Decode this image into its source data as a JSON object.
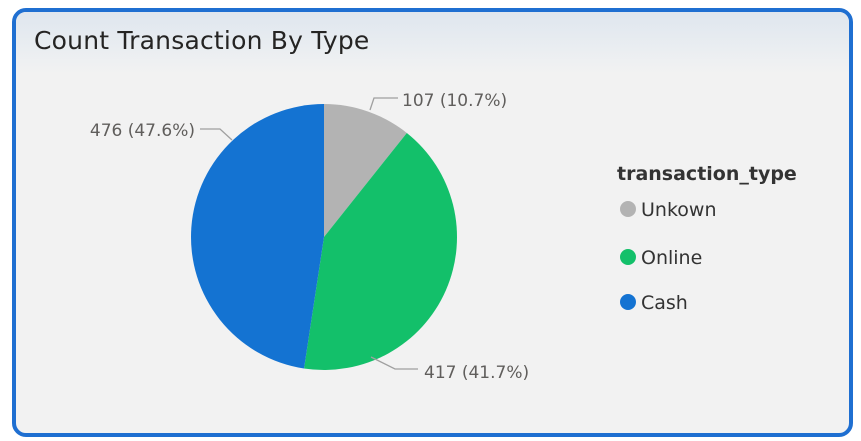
{
  "card": {
    "title": "Count Transaction By Type"
  },
  "chart_data": {
    "type": "pie",
    "title": "Count Transaction By Type",
    "legend": {
      "title": "transaction_type",
      "placement": "right"
    },
    "slices": [
      {
        "label": "Unkown",
        "value": 107,
        "percent": 10.7,
        "data_label": "107 (10.7%)",
        "color": "#b3b3b3"
      },
      {
        "label": "Online",
        "value": 417,
        "percent": 41.7,
        "data_label": "417 (41.7%)",
        "color": "#13c06a"
      },
      {
        "label": "Cash",
        "value": 476,
        "percent": 47.6,
        "data_label": "476 (47.6%)",
        "color": "#1473d2"
      }
    ],
    "legend_order": [
      "Unkown",
      "Online",
      "Cash"
    ]
  },
  "colors": {
    "border": "#1f6fd1",
    "background": "#f2f2f2",
    "leader_line": "#a0a0a0"
  }
}
